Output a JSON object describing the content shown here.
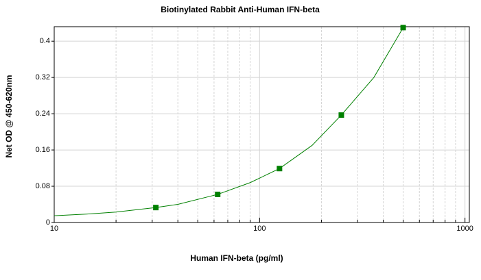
{
  "chart_data": {
    "type": "scatter",
    "title": "Biotinylated Rabbit Anti-Human IFN-beta",
    "x_label": "Human IFN-beta (pg/ml)",
    "y_label": "Net OD @ 450-620nm",
    "x_scale": "log",
    "series": [
      {
        "color": "#008000",
        "x": [
          31.25,
          62.5,
          125,
          250,
          500
        ],
        "values": [
          0.033,
          0.062,
          0.119,
          0.237,
          0.43
        ]
      }
    ],
    "curve": {
      "color": "#008000",
      "x": [
        10,
        15,
        20,
        31.25,
        40,
        62.5,
        90,
        125,
        180,
        250,
        360,
        500
      ],
      "values": [
        0.015,
        0.019,
        0.023,
        0.033,
        0.04,
        0.062,
        0.088,
        0.119,
        0.17,
        0.237,
        0.32,
        0.43
      ]
    },
    "xlim": [
      10,
      1050
    ],
    "ylim": [
      0,
      0.432
    ],
    "xticks": [
      10,
      100,
      1000
    ],
    "x_minor_ticks": [
      20,
      30,
      40,
      50,
      60,
      70,
      80,
      90,
      200,
      300,
      400,
      500,
      600,
      700,
      800,
      900
    ],
    "yticks": [
      0,
      0.08,
      0.16,
      0.24,
      0.32,
      0.4
    ],
    "grid": true
  }
}
